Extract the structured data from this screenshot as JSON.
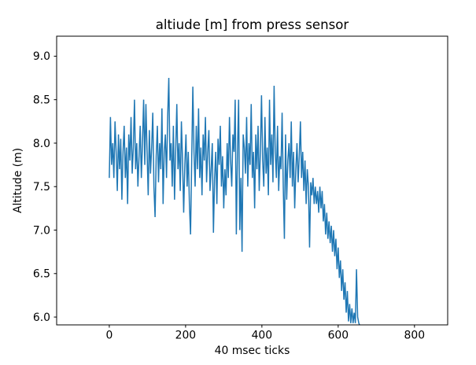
{
  "chart_data": {
    "type": "line",
    "title": "altiude [m] from press sensor",
    "xlabel": "40 msec ticks",
    "ylabel": "Altitude (m)",
    "x_ticks": [
      0,
      200,
      400,
      600,
      800
    ],
    "y_ticks": [
      6.0,
      6.5,
      7.0,
      7.5,
      8.0,
      8.5,
      9.0
    ],
    "xlim": [
      -138,
      887
    ],
    "ylim": [
      5.91,
      9.23
    ],
    "grid": false,
    "legend": "none",
    "line_color": "#1f77b4",
    "line_width": 1.5,
    "frame_color": "#000000",
    "series": [
      {
        "name": "altitude",
        "t0": 0,
        "dt": 3,
        "values": [
          7.6,
          8.3,
          7.75,
          8.0,
          7.6,
          8.25,
          7.9,
          7.45,
          8.1,
          7.7,
          8.05,
          7.35,
          7.9,
          8.2,
          7.6,
          7.95,
          7.3,
          8.1,
          7.8,
          8.3,
          7.65,
          7.95,
          8.5,
          7.7,
          8.0,
          7.5,
          7.85,
          8.2,
          7.6,
          8.0,
          8.5,
          7.75,
          8.45,
          7.9,
          7.4,
          8.15,
          7.65,
          7.95,
          8.35,
          7.5,
          7.15,
          7.85,
          8.2,
          7.55,
          8.0,
          7.7,
          8.4,
          7.3,
          7.9,
          8.1,
          7.6,
          8.3,
          8.75,
          7.8,
          8.0,
          7.5,
          8.2,
          7.35,
          7.9,
          8.45,
          7.7,
          8.0,
          7.45,
          8.25,
          7.8,
          7.2,
          7.75,
          8.1,
          7.5,
          7.9,
          7.3,
          6.95,
          7.8,
          8.65,
          7.9,
          7.5,
          8.2,
          7.7,
          8.4,
          7.6,
          7.95,
          7.4,
          8.1,
          7.8,
          8.3,
          7.55,
          7.9,
          8.15,
          7.45,
          7.7,
          8.0,
          6.97,
          7.6,
          7.9,
          7.3,
          8.05,
          7.75,
          8.2,
          7.5,
          7.85,
          7.25,
          7.7,
          7.4,
          8.0,
          7.6,
          8.3,
          7.8,
          7.5,
          8.1,
          7.9,
          8.5,
          6.95,
          7.9,
          8.5,
          7.0,
          7.6,
          6.75,
          8.1,
          7.95,
          7.65,
          8.3,
          7.5,
          8.0,
          7.75,
          8.45,
          7.6,
          7.9,
          7.25,
          8.1,
          7.7,
          8.2,
          7.45,
          7.9,
          8.55,
          7.8,
          7.5,
          8.3,
          7.65,
          7.95,
          7.4,
          8.5,
          7.75,
          8.1,
          7.55,
          8.66,
          7.9,
          7.6,
          8.2,
          7.45,
          7.85,
          7.7,
          8.35,
          7.5,
          6.9,
          8.1,
          7.35,
          7.8,
          8.0,
          7.6,
          8.25,
          7.5,
          7.9,
          7.25,
          7.7,
          8.0,
          7.55,
          7.85,
          8.25,
          7.6,
          7.9,
          7.45,
          7.8,
          7.3,
          7.7,
          7.5,
          6.8,
          7.55,
          7.4,
          7.6,
          7.3,
          7.5,
          7.3,
          7.45,
          7.2,
          7.5,
          7.25,
          7.45,
          7.1,
          7.3,
          6.95,
          7.2,
          6.9,
          7.1,
          6.85,
          7.05,
          6.75,
          7.0,
          6.7,
          6.9,
          6.55,
          6.8,
          6.45,
          6.65,
          6.3,
          6.55,
          6.2,
          6.4,
          6.05,
          6.3,
          5.95,
          6.15,
          5.93,
          6.1,
          5.93,
          6.05,
          5.93,
          6.55,
          6.0,
          5.93,
          5.9
        ]
      }
    ]
  }
}
